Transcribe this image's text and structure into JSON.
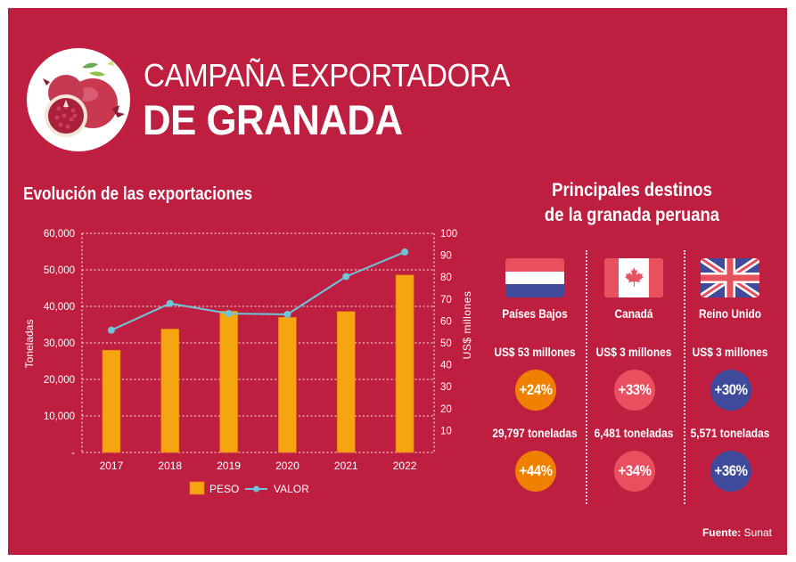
{
  "header": {
    "title_line1": "CAMPAÑA EXPORTADORA",
    "title_line2": "DE GRANADA",
    "image": "pomegranate-icon"
  },
  "colors": {
    "background": "#be1f40",
    "bar": "#f5a50f",
    "line": "#6cc5d9",
    "orange_badge": "#f08000",
    "pink_badge": "#e94f5e",
    "blue_badge": "#3f4a9a"
  },
  "chart_data": {
    "type": "bar",
    "title": "Evolución de las exportaciones",
    "categories": [
      "2017",
      "2018",
      "2019",
      "2020",
      "2021",
      "2022"
    ],
    "series": [
      {
        "name": "PESO",
        "type": "bar",
        "axis": "left",
        "values": [
          28000,
          33800,
          38700,
          37000,
          38600,
          48600
        ]
      },
      {
        "name": "VALOR",
        "type": "line",
        "axis": "right",
        "values": [
          55.8,
          68,
          63.4,
          63,
          80.3,
          91.5
        ]
      }
    ],
    "ylabel": "Toneladas",
    "ylabel_right": "US$ millones",
    "ylim": [
      0,
      60000
    ],
    "ylim_right": [
      0,
      100
    ],
    "yticks": [
      "-",
      "10,000",
      "20,000",
      "30,000",
      "40,000",
      "50,000",
      "60,000"
    ],
    "yticks_right": [
      "",
      "10",
      "20",
      "30",
      "40",
      "50",
      "60",
      "70",
      "80",
      "90",
      "100"
    ],
    "grid": true,
    "legend": [
      "PESO",
      "VALOR"
    ],
    "legend_position": "bottom"
  },
  "destinations": {
    "title_line1": "Principales destinos",
    "title_line2": "de la granada peruana",
    "items": [
      {
        "country": "Países Bajos",
        "flag": "netherlands-flag-icon",
        "value": "US$ 53 millones",
        "value_change": "+24%",
        "volume": "29,797 toneladas",
        "volume_change": "+44%",
        "badge_color": "orange"
      },
      {
        "country": "Canadá",
        "flag": "canada-flag-icon",
        "value": "US$ 3 millones",
        "value_change": "+33%",
        "volume": "6,481 toneladas",
        "volume_change": "+34%",
        "badge_color": "pink"
      },
      {
        "country": "Reino Unido",
        "flag": "uk-flag-icon",
        "value": "US$ 3 millones",
        "value_change": "+30%",
        "volume": "5,571 toneladas",
        "volume_change": "+36%",
        "badge_color": "blue"
      }
    ]
  },
  "source": {
    "label": "Fuente:",
    "value": "Sunat"
  }
}
